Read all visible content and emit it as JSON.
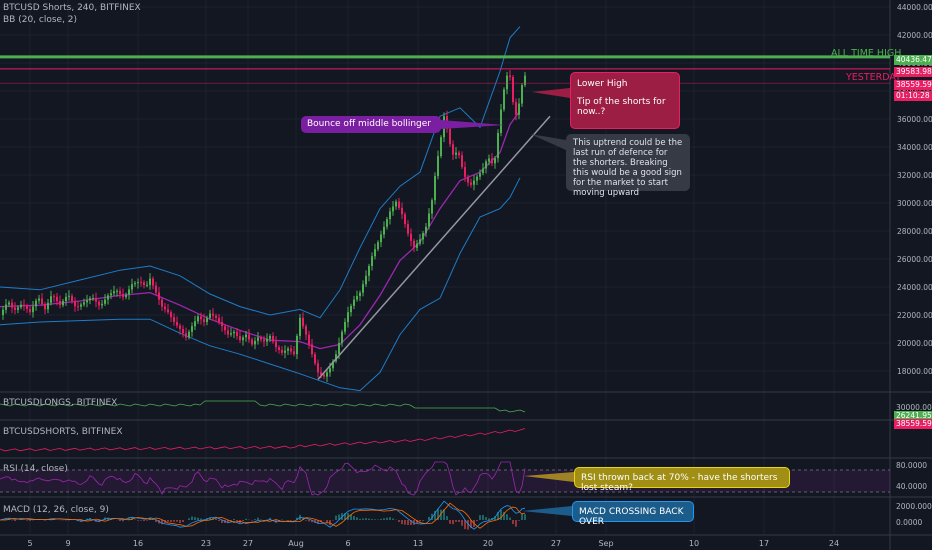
{
  "header": {
    "symbol": "BTCUSD Shorts, 240, BITFINEX",
    "indicator": "BB (20, close, 2)"
  },
  "panes": {
    "longs": "BTCUSDLONGS, BITFINEX",
    "shorts": "BTCUSDSHORTS, BITFINEX",
    "rsi": "RSI (14, close)",
    "macd": "MACD (12, 26, close, 9)"
  },
  "levels": {
    "ath_label": "ALL TIME HIGH",
    "ath_value": "40436.4774",
    "yesterday_label": "YESTERDAY",
    "yesterday_value": "39583.9813",
    "current_value": "38559.5947",
    "countdown": "01:10:28"
  },
  "annotations": {
    "bounce": "Bounce off middle bollinger",
    "lower_high_1": "Lower High",
    "lower_high_2": "Tip of the shorts for now..?",
    "uptrend": "This uptrend could be the last run of defence for the shorters. Breaking this would be a good sign for the market to start moving upward",
    "rsi_note": "RSI thrown back at 70% - have the shorters lost steam?",
    "macd_note": "MACD CROSSING BACK OVER"
  },
  "pane_values": {
    "longs_ticks": [
      "30000.0000"
    ],
    "longs_current": "26241.9566",
    "shorts_current": "38559.5947",
    "rsi_ticks": [
      "80.0000",
      "40.0000"
    ],
    "macd_ticks": [
      "2000.0000",
      "0.0000"
    ]
  },
  "colors": {
    "background": "#131722",
    "up": "#4caf50",
    "down": "#e91e63",
    "bb_band": "#2196f3",
    "bb_basis": "#9c27b0",
    "ath": "#4caf50",
    "yesterday": "#e91e63",
    "rsi_line": "#9c27b0",
    "longs_line": "#4caf50",
    "shorts_line": "#e91e63"
  },
  "chart_data": {
    "type": "candlestick",
    "timeframe": "240",
    "x_ticks": [
      "5",
      "9",
      "16",
      "23",
      "27",
      "Aug",
      "6",
      "13",
      "20",
      "27",
      "Sep",
      "10",
      "17",
      "24"
    ],
    "y_ticks": [
      44000,
      42000,
      40000,
      38000,
      36000,
      34000,
      32000,
      30000,
      28000,
      26000,
      24000,
      22000,
      20000,
      18000
    ],
    "ylim": [
      16500,
      44500
    ],
    "price_path": [
      [
        0,
        22000
      ],
      [
        8,
        23000
      ],
      [
        14,
        22300
      ],
      [
        22,
        22800
      ],
      [
        30,
        22200
      ],
      [
        38,
        23300
      ],
      [
        45,
        22400
      ],
      [
        52,
        23500
      ],
      [
        60,
        22700
      ],
      [
        68,
        23500
      ],
      [
        76,
        22500
      ],
      [
        84,
        22900
      ],
      [
        92,
        23300
      ],
      [
        100,
        22600
      ],
      [
        108,
        23400
      ],
      [
        116,
        23800
      ],
      [
        124,
        23200
      ],
      [
        132,
        24200
      ],
      [
        140,
        24400
      ],
      [
        146,
        24000
      ],
      [
        150,
        24600
      ],
      [
        156,
        23600
      ],
      [
        162,
        22600
      ],
      [
        168,
        22200
      ],
      [
        174,
        21500
      ],
      [
        180,
        21000
      ],
      [
        186,
        20400
      ],
      [
        192,
        21200
      ],
      [
        198,
        21900
      ],
      [
        204,
        21500
      ],
      [
        210,
        22100
      ],
      [
        216,
        21800
      ],
      [
        222,
        21200
      ],
      [
        228,
        20600
      ],
      [
        234,
        20800
      ],
      [
        240,
        20200
      ],
      [
        246,
        20600
      ],
      [
        252,
        19900
      ],
      [
        258,
        20400
      ],
      [
        264,
        20100
      ],
      [
        270,
        20500
      ],
      [
        276,
        19700
      ],
      [
        282,
        19300
      ],
      [
        288,
        19600
      ],
      [
        294,
        19200
      ],
      [
        300,
        21800
      ],
      [
        306,
        20600
      ],
      [
        312,
        19200
      ],
      [
        318,
        17900
      ],
      [
        324,
        17600
      ],
      [
        330,
        18200
      ],
      [
        336,
        19200
      ],
      [
        342,
        20800
      ],
      [
        348,
        22200
      ],
      [
        354,
        23100
      ],
      [
        360,
        23600
      ],
      [
        366,
        24800
      ],
      [
        372,
        26200
      ],
      [
        378,
        27200
      ],
      [
        384,
        28300
      ],
      [
        390,
        29400
      ],
      [
        396,
        30100
      ],
      [
        402,
        29200
      ],
      [
        408,
        27800
      ],
      [
        414,
        26800
      ],
      [
        420,
        27400
      ],
      [
        426,
        28300
      ],
      [
        432,
        30200
      ],
      [
        436,
        32500
      ],
      [
        440,
        34200
      ],
      [
        444,
        36200
      ],
      [
        448,
        35000
      ],
      [
        452,
        33400
      ],
      [
        458,
        33700
      ],
      [
        464,
        32000
      ],
      [
        470,
        31200
      ],
      [
        476,
        31800
      ],
      [
        482,
        32300
      ],
      [
        488,
        33300
      ],
      [
        494,
        32600
      ],
      [
        500,
        36200
      ],
      [
        505,
        38600
      ],
      [
        509,
        39600
      ],
      [
        513,
        37200
      ],
      [
        517,
        36000
      ],
      [
        521,
        38200
      ],
      [
        525,
        39100
      ]
    ],
    "bollinger_upper_path": [
      [
        0,
        24000
      ],
      [
        40,
        23800
      ],
      [
        80,
        24500
      ],
      [
        120,
        25200
      ],
      [
        150,
        25500
      ],
      [
        180,
        24800
      ],
      [
        210,
        23500
      ],
      [
        240,
        22600
      ],
      [
        270,
        22000
      ],
      [
        300,
        22400
      ],
      [
        320,
        21800
      ],
      [
        340,
        23800
      ],
      [
        360,
        26800
      ],
      [
        380,
        29600
      ],
      [
        400,
        31200
      ],
      [
        420,
        32200
      ],
      [
        440,
        36200
      ],
      [
        460,
        36800
      ],
      [
        480,
        35400
      ],
      [
        500,
        39400
      ],
      [
        510,
        41800
      ],
      [
        520,
        42600
      ]
    ],
    "bollinger_basis_path": [
      [
        0,
        22600
      ],
      [
        40,
        22700
      ],
      [
        80,
        23000
      ],
      [
        120,
        23400
      ],
      [
        150,
        23600
      ],
      [
        180,
        22700
      ],
      [
        210,
        21700
      ],
      [
        240,
        20900
      ],
      [
        270,
        20200
      ],
      [
        300,
        20100
      ],
      [
        320,
        19600
      ],
      [
        340,
        19900
      ],
      [
        360,
        21300
      ],
      [
        380,
        23400
      ],
      [
        400,
        25900
      ],
      [
        420,
        27200
      ],
      [
        440,
        29600
      ],
      [
        460,
        31600
      ],
      [
        480,
        32200
      ],
      [
        500,
        33600
      ],
      [
        510,
        35600
      ],
      [
        520,
        36600
      ]
    ],
    "bollinger_lower_path": [
      [
        0,
        21300
      ],
      [
        40,
        21500
      ],
      [
        80,
        21600
      ],
      [
        120,
        21700
      ],
      [
        150,
        21700
      ],
      [
        180,
        20700
      ],
      [
        210,
        19800
      ],
      [
        240,
        19200
      ],
      [
        270,
        18500
      ],
      [
        300,
        17800
      ],
      [
        320,
        17300
      ],
      [
        340,
        16800
      ],
      [
        360,
        16600
      ],
      [
        380,
        17900
      ],
      [
        400,
        20600
      ],
      [
        420,
        22400
      ],
      [
        440,
        23200
      ],
      [
        460,
        26400
      ],
      [
        480,
        29000
      ],
      [
        500,
        29600
      ],
      [
        510,
        30400
      ],
      [
        520,
        31800
      ]
    ],
    "trendline": [
      [
        318,
        17400
      ],
      [
        550,
        36200
      ]
    ],
    "all_time_high": 40436.4774,
    "yesterday_high": 39583.9813,
    "current_price": 38559.5947
  }
}
